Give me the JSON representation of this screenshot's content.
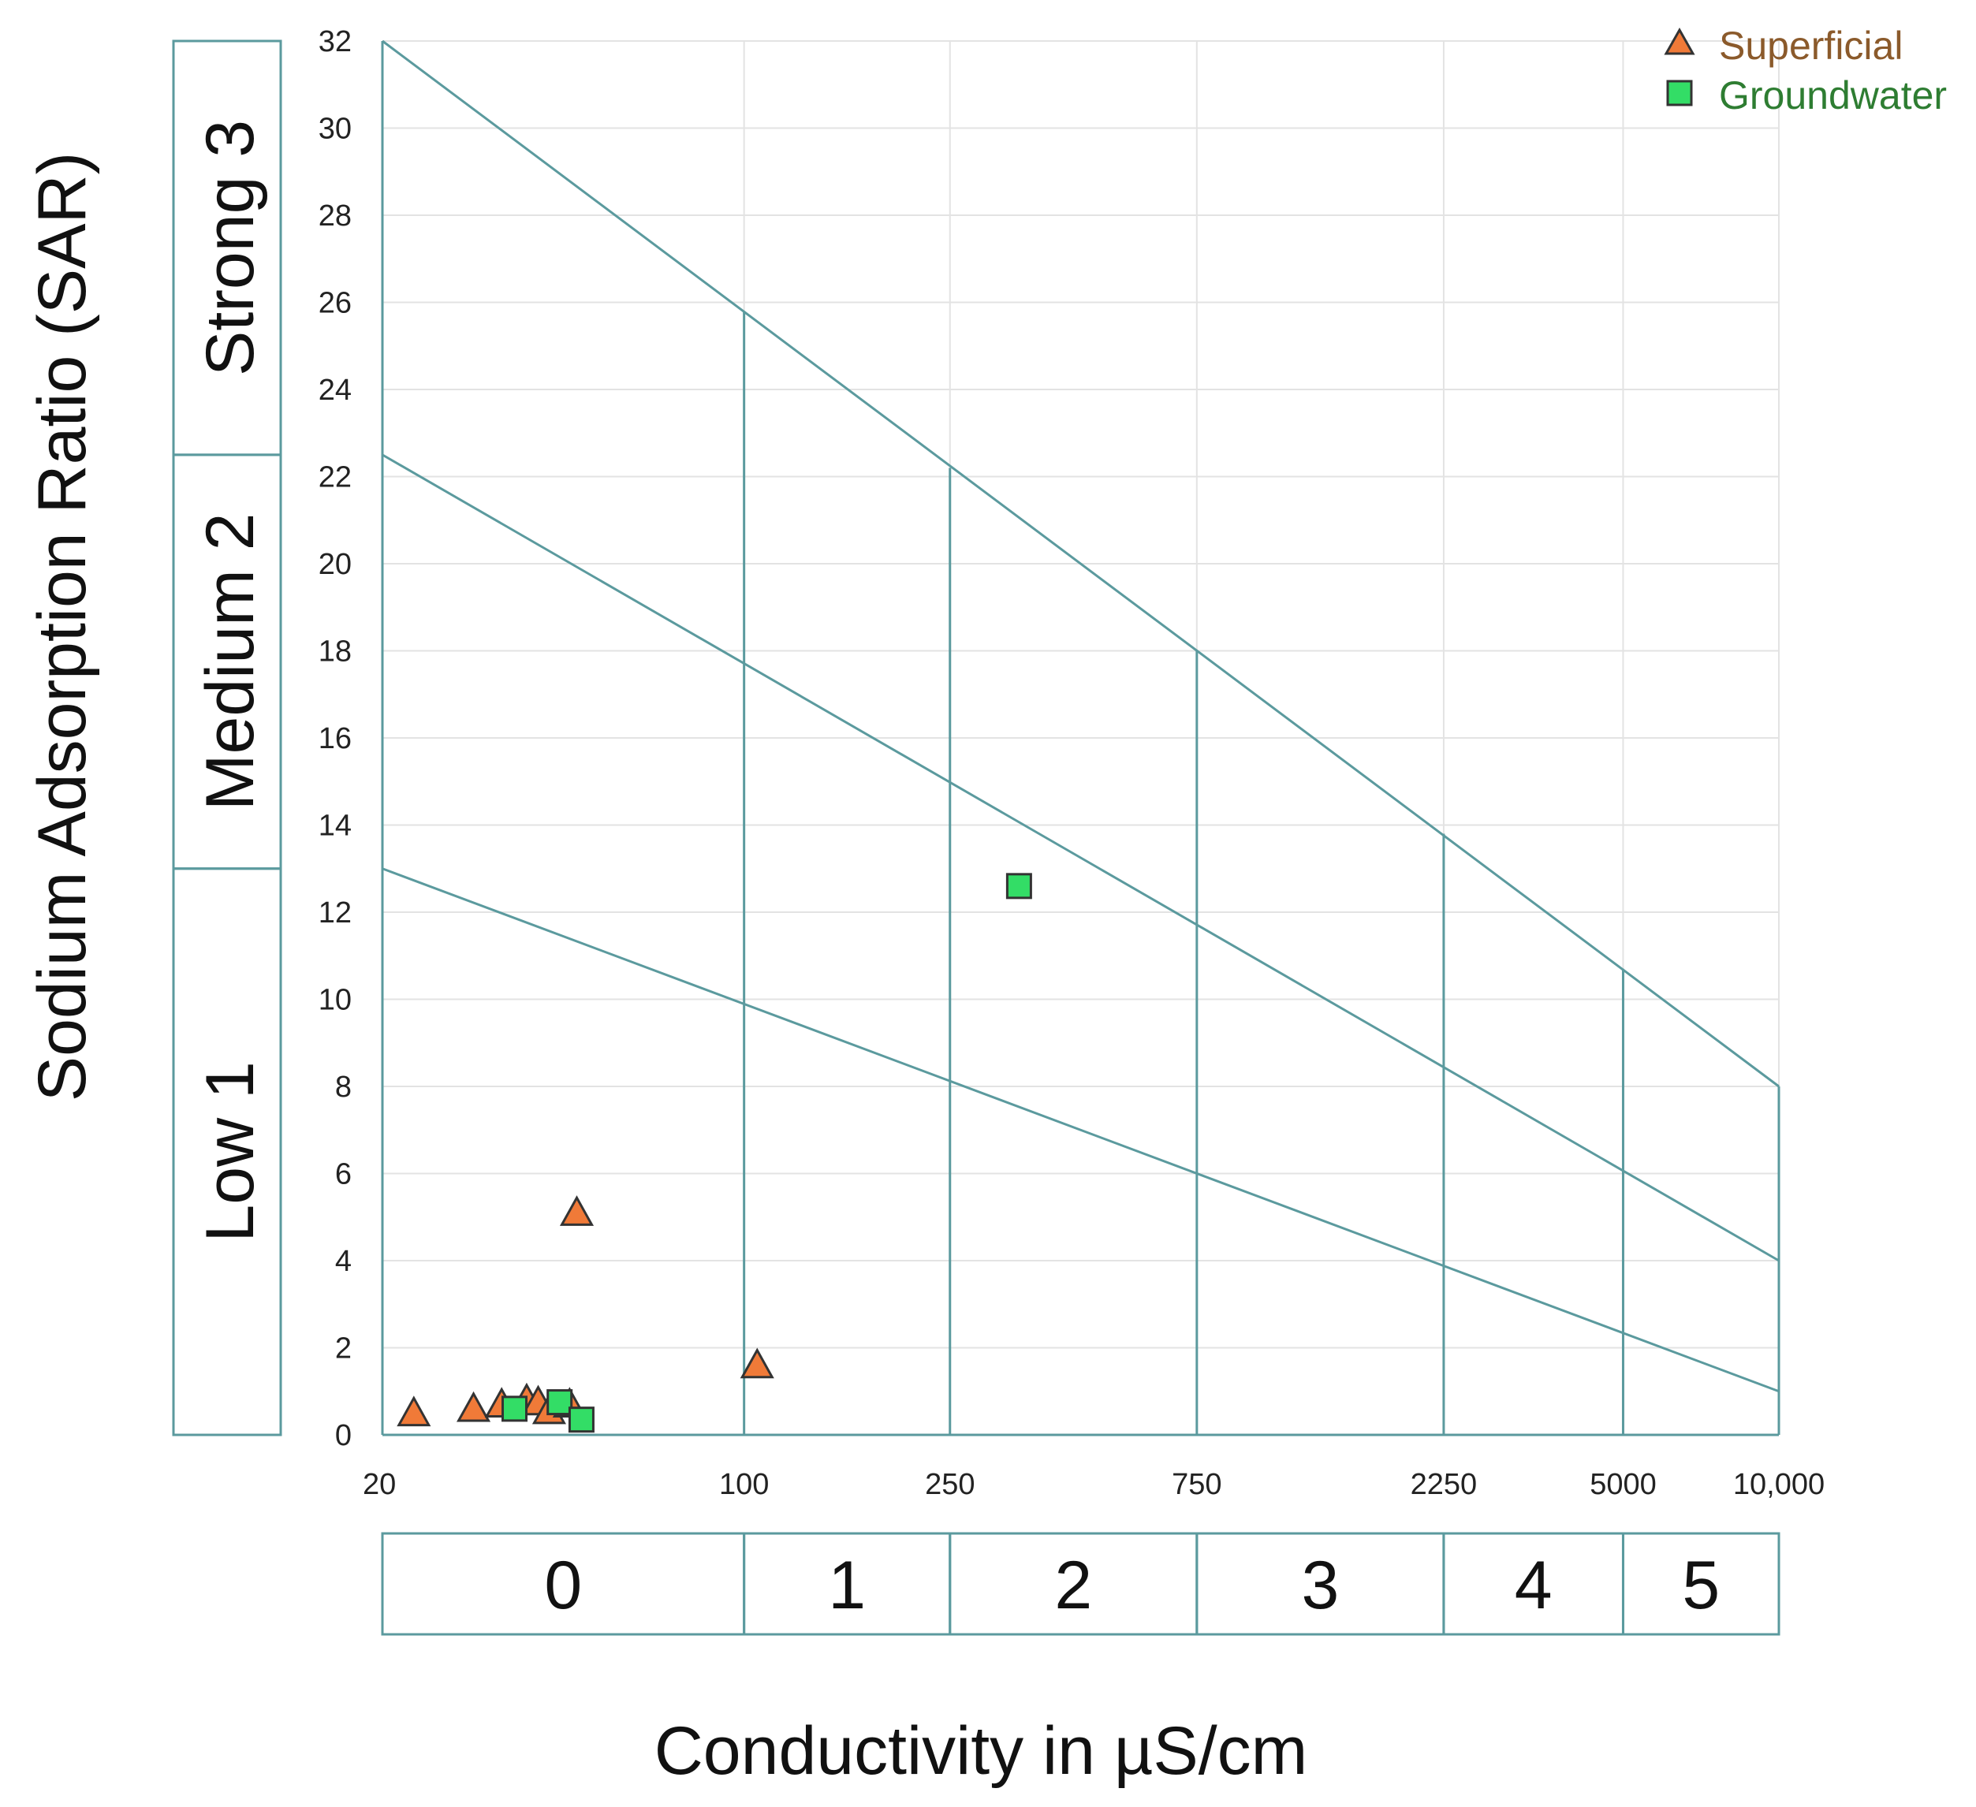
{
  "chart_data": {
    "type": "scatter",
    "title": "",
    "xlabel": "Conductivity in µS/cm",
    "ylabel": "Sodium Adsorption Ratio (SAR)",
    "x_scale": "log",
    "xlim": [
      20,
      10000
    ],
    "ylim": [
      0,
      32
    ],
    "x_ticks": [
      {
        "value": 20,
        "label": "20"
      },
      {
        "value": 100,
        "label": "100"
      },
      {
        "value": 250,
        "label": "250"
      },
      {
        "value": 750,
        "label": "750"
      },
      {
        "value": 2250,
        "label": "2250"
      },
      {
        "value": 5000,
        "label": "5000"
      },
      {
        "value": 10000,
        "label": "10,000"
      }
    ],
    "y_ticks": [
      "0",
      "2",
      "4",
      "6",
      "8",
      "10",
      "12",
      "14",
      "16",
      "18",
      "20",
      "22",
      "24",
      "26",
      "28",
      "30",
      "32"
    ],
    "grid": true,
    "legend_position": "top-right",
    "salinity_classes": [
      {
        "label": "0",
        "from": 20,
        "to": 100
      },
      {
        "label": "1",
        "from": 100,
        "to": 250
      },
      {
        "label": "2",
        "from": 250,
        "to": 750
      },
      {
        "label": "3",
        "from": 750,
        "to": 2250
      },
      {
        "label": "4",
        "from": 2250,
        "to": 5000
      },
      {
        "label": "5",
        "from": 5000,
        "to": 10000
      }
    ],
    "sodicity_classes": [
      {
        "label": "Low 1",
        "from": 0,
        "to": 13
      },
      {
        "label": "Medium 2",
        "from": 13,
        "to": 22.5
      },
      {
        "label": "Strong 3",
        "from": 22.5,
        "to": 32
      }
    ],
    "boundary_lines": [
      {
        "name": "low-medium",
        "points": [
          [
            20,
            13
          ],
          [
            10000,
            1
          ]
        ]
      },
      {
        "name": "medium-strong",
        "points": [
          [
            20,
            22.5
          ],
          [
            10000,
            4
          ]
        ]
      },
      {
        "name": "strong-upper",
        "points": [
          [
            20,
            32
          ],
          [
            10000,
            8
          ]
        ]
      }
    ],
    "class_dividers": [
      {
        "x": 100,
        "y_top": 25.8
      },
      {
        "x": 250,
        "y_top": 22.2
      },
      {
        "x": 750,
        "y_top": 18
      },
      {
        "x": 2250,
        "y_top": 13.8
      },
      {
        "x": 5000,
        "y_top": 10.7
      },
      {
        "x": 10000,
        "y_top": 8
      }
    ],
    "series": [
      {
        "name": "Superficial",
        "marker": "triangle",
        "color": "#F07A38",
        "text_color": "#8B5A2B",
        "points": [
          [
            23,
            0.5
          ],
          [
            30,
            0.6
          ],
          [
            34,
            0.7
          ],
          [
            38,
            0.8
          ],
          [
            40,
            0.75
          ],
          [
            42,
            0.55
          ],
          [
            46,
            0.7
          ],
          [
            47.5,
            5.1
          ],
          [
            106,
            1.6
          ]
        ]
      },
      {
        "name": "Groundwater",
        "marker": "square",
        "color": "#33DD66",
        "text_color": "#2E7D32",
        "points": [
          [
            36,
            0.6
          ],
          [
            44,
            0.75
          ],
          [
            48.5,
            0.35
          ],
          [
            340,
            12.6
          ]
        ]
      }
    ]
  }
}
